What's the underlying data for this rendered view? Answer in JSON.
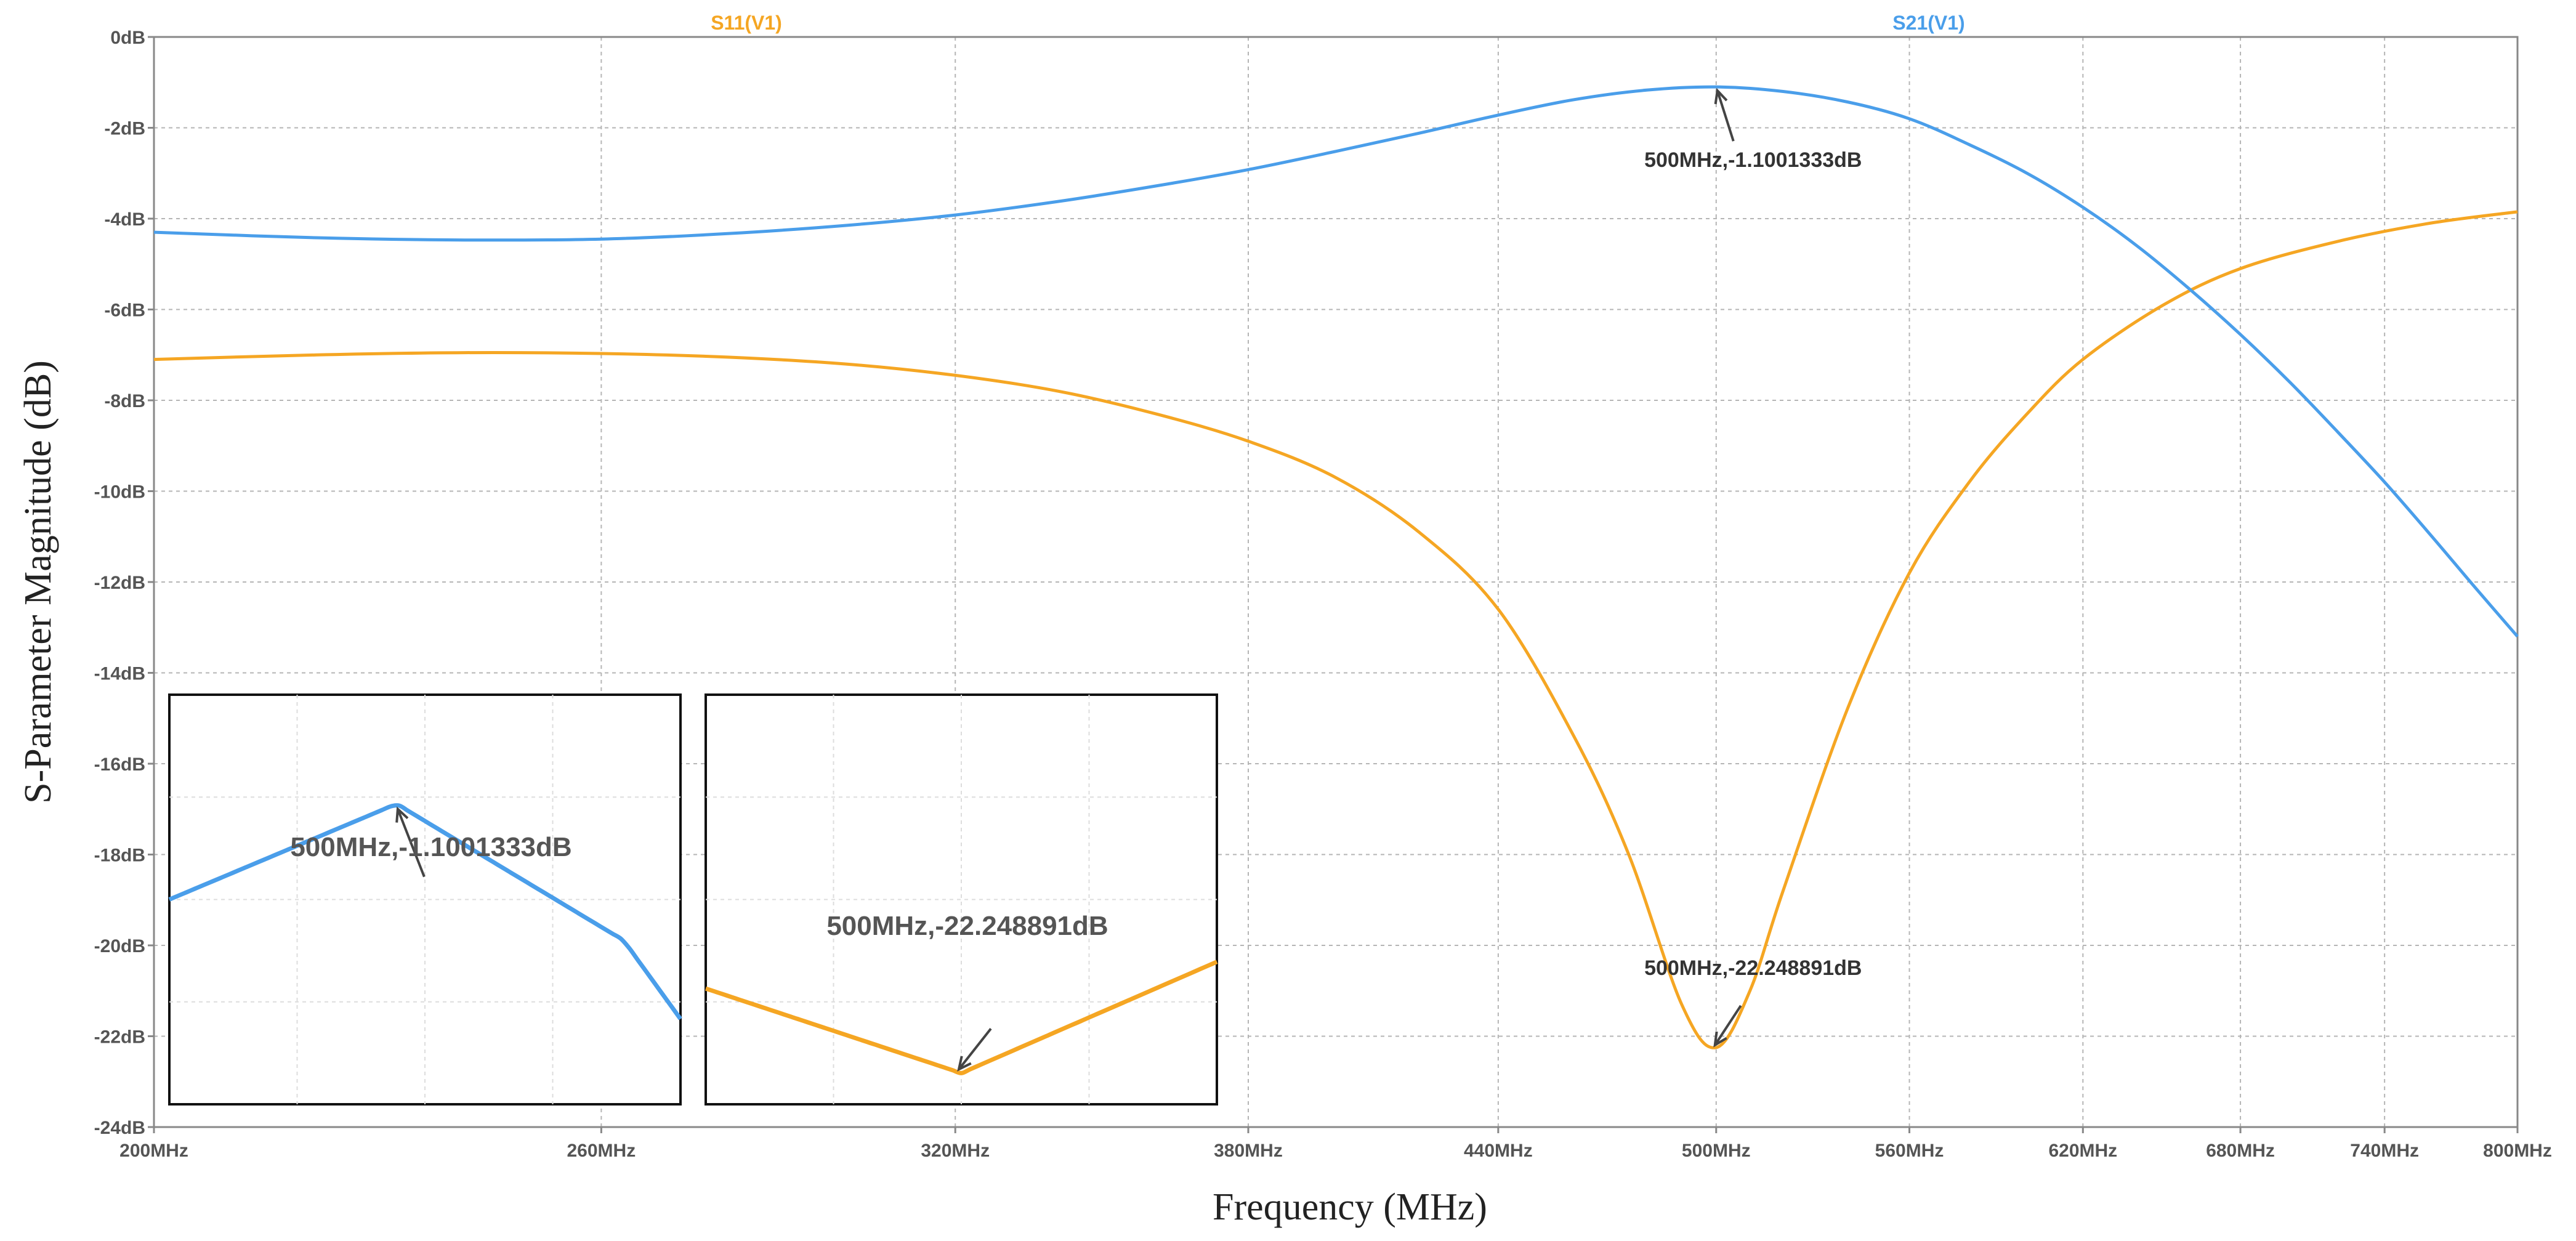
{
  "chart_data": {
    "type": "line",
    "xlabel": "Frequency (MHz)",
    "ylabel": "S-Parameter Magnitude (dB)",
    "xlim": [
      200,
      800
    ],
    "ylim": [
      -24,
      0
    ],
    "y_ticks": [
      0,
      -2,
      -4,
      -6,
      -8,
      -10,
      -12,
      -14,
      -16,
      -18,
      -20,
      -22,
      -24
    ],
    "y_tick_labels": [
      "0dB",
      "-2dB",
      "-4dB",
      "-6dB",
      "-8dB",
      "-10dB",
      "-12dB",
      "-14dB",
      "-16dB",
      "-18dB",
      "-20dB",
      "-22dB",
      "-24dB"
    ],
    "x_ticks": [
      200,
      260,
      320,
      380,
      440,
      500,
      560,
      620,
      680,
      740,
      800
    ],
    "x_tick_labels": [
      "200MHz",
      "260MHz",
      "320MHz",
      "380MHz",
      "440MHz",
      "500MHz",
      "560MHz",
      "620MHz",
      "680MHz",
      "740MHz",
      "800MHz"
    ],
    "x_scale": "log",
    "grid": true,
    "series": [
      {
        "name": "S11(V1)",
        "color": "#F5A623",
        "x": [
          200,
          220,
          240,
          260,
          280,
          300,
          320,
          340,
          360,
          380,
          400,
          420,
          440,
          460,
          475,
          490,
          500,
          510,
          520,
          540,
          560,
          580,
          600,
          620,
          650,
          680,
          720,
          760,
          800
        ],
        "y": [
          -7.1,
          -7.0,
          -6.95,
          -6.97,
          -7.05,
          -7.2,
          -7.45,
          -7.8,
          -8.3,
          -8.9,
          -9.7,
          -10.9,
          -12.6,
          -15.4,
          -18.0,
          -21.3,
          -22.25,
          -21.0,
          -18.8,
          -14.8,
          -11.8,
          -9.8,
          -8.3,
          -7.1,
          -5.9,
          -5.1,
          -4.5,
          -4.1,
          -3.85
        ]
      },
      {
        "name": "S21(V1)",
        "color": "#4A9EEA",
        "x": [
          200,
          220,
          240,
          260,
          280,
          300,
          320,
          340,
          360,
          380,
          400,
          420,
          440,
          460,
          480,
          500,
          520,
          540,
          560,
          580,
          600,
          620,
          640,
          660,
          680,
          700,
          720,
          740,
          760,
          780,
          800
        ],
        "y": [
          -4.3,
          -4.42,
          -4.47,
          -4.45,
          -4.33,
          -4.15,
          -3.92,
          -3.62,
          -3.28,
          -2.92,
          -2.52,
          -2.12,
          -1.72,
          -1.38,
          -1.17,
          -1.1,
          -1.2,
          -1.43,
          -1.8,
          -2.37,
          -3.0,
          -3.75,
          -4.6,
          -5.55,
          -6.55,
          -7.6,
          -8.7,
          -9.8,
          -10.95,
          -12.1,
          -13.2
        ]
      }
    ],
    "annotations": [
      {
        "text": "500MHz,-1.1001333dB",
        "x": 500,
        "y": -1.1001333
      },
      {
        "text": "500MHz,-22.248891dB",
        "x": 500,
        "y": -22.248891
      }
    ],
    "insets": [
      {
        "label": "500MHz,-1.1001333dB",
        "series": "S21(V1)"
      },
      {
        "label": "500MHz,-22.248891dB",
        "series": "S11(V1)"
      }
    ]
  }
}
